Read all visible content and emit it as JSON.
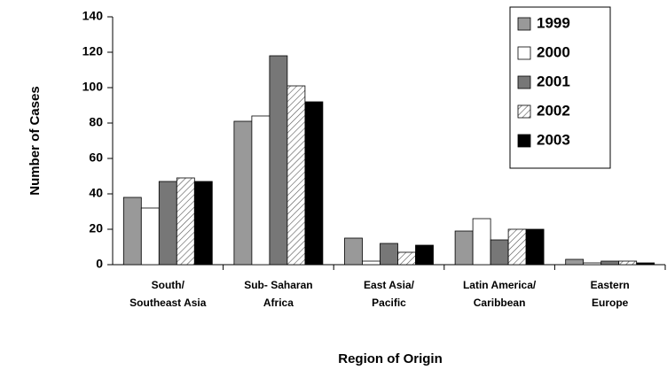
{
  "chart_data": {
    "type": "bar",
    "ylabel": "Number of Cases",
    "xlabel": "Region of Origin",
    "categories": [
      [
        "South/",
        "Southeast Asia"
      ],
      [
        "Sub- Saharan",
        "Africa"
      ],
      [
        "East  Asia/",
        "Pacific"
      ],
      [
        "Latin America/",
        "Caribbean"
      ],
      [
        "Eastern",
        "Europe"
      ]
    ],
    "series": [
      {
        "name": "1999",
        "color": "#999999",
        "values": [
          38,
          81,
          15,
          19,
          3
        ]
      },
      {
        "name": "2000",
        "color": "#ffffff",
        "values": [
          32,
          84,
          2,
          26,
          1
        ]
      },
      {
        "name": "2001",
        "color": "#777777",
        "values": [
          47,
          118,
          12,
          14,
          2
        ]
      },
      {
        "name": "2002",
        "color": "#ffffff",
        "hatch": true,
        "values": [
          49,
          101,
          7,
          20,
          2
        ]
      },
      {
        "name": "2003",
        "color": "#000000",
        "values": [
          47,
          92,
          11,
          20,
          1
        ]
      }
    ],
    "ylim": [
      0,
      140
    ],
    "yticks": [
      0,
      20,
      40,
      60,
      80,
      100,
      120,
      140
    ],
    "legend": "upper right"
  }
}
